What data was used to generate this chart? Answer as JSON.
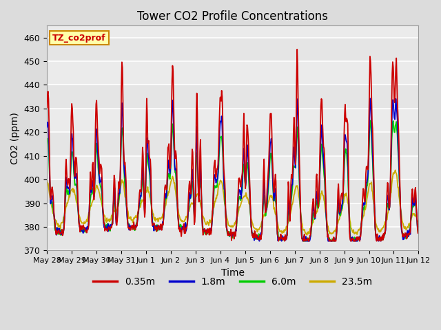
{
  "title": "Tower CO2 Profile Concentrations",
  "xlabel": "Time",
  "ylabel": "CO2 (ppm)",
  "ylim": [
    370,
    465
  ],
  "yticks": [
    370,
    380,
    390,
    400,
    410,
    420,
    430,
    440,
    450,
    460
  ],
  "bg_color": "#dcdcdc",
  "plot_bg_color": "#ebebeb",
  "series_labels": [
    "0.35m",
    "1.8m",
    "6.0m",
    "23.5m"
  ],
  "series_colors": [
    "#cc0000",
    "#0000cc",
    "#00cc00",
    "#ccaa00"
  ],
  "annotation_text": "TZ_co2prof",
  "annotation_bg": "#ffffaa",
  "annotation_border": "#cc8800",
  "annotation_text_color": "#cc0000",
  "xtick_labels": [
    "May 28",
    "May 29",
    "May 30",
    "May 31",
    "Jun 1",
    "Jun 2",
    "Jun 3",
    "Jun 4",
    "Jun 5",
    "Jun 6",
    "Jun 7",
    "Jun 8",
    "Jun 9",
    "Jun 10",
    "Jun 11",
    "Jun 12"
  ],
  "n_days": 15,
  "pts_per_day": 48
}
